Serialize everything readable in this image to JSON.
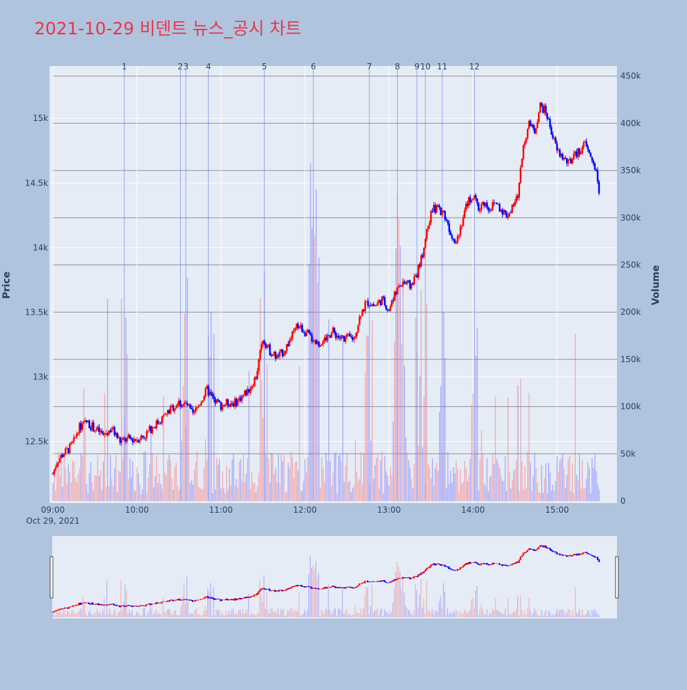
{
  "chart_data": {
    "type": "candlestick",
    "title": "2021-10-29 비덴트 뉴스_공시 차트",
    "xlabel": "",
    "ylabel": "Price",
    "y2label": "Volume",
    "date_label": "Oct 29, 2021",
    "x_ticks": [
      "09:00",
      "10:00",
      "11:00",
      "12:00",
      "13:00",
      "14:00",
      "15:00"
    ],
    "price_ticks": [
      {
        "value": 12500,
        "label": "12.5k"
      },
      {
        "value": 13000,
        "label": "13k"
      },
      {
        "value": 13500,
        "label": "13.5k"
      },
      {
        "value": 14000,
        "label": "14k"
      },
      {
        "value": 14500,
        "label": "14.5k"
      },
      {
        "value": 15000,
        "label": "15k"
      }
    ],
    "volume_ticks": [
      {
        "value": 0,
        "label": "0"
      },
      {
        "value": 50000,
        "label": "50k"
      },
      {
        "value": 100000,
        "label": "100k"
      },
      {
        "value": 150000,
        "label": "150k"
      },
      {
        "value": 200000,
        "label": "200k"
      },
      {
        "value": 250000,
        "label": "250k"
      },
      {
        "value": 300000,
        "label": "300k"
      },
      {
        "value": 350000,
        "label": "350k"
      },
      {
        "value": 400000,
        "label": "400k"
      },
      {
        "value": 450000,
        "label": "450k"
      }
    ],
    "x_range_minutes": [
      0,
      391
    ],
    "price_range": [
      12040,
      15400
    ],
    "volume_range": [
      0,
      460000
    ],
    "rising_color": "#ff0000",
    "falling_color": "#0000ff",
    "price_path": [
      [
        0,
        12250
      ],
      [
        3,
        12350
      ],
      [
        7,
        12400
      ],
      [
        12,
        12450
      ],
      [
        15,
        12500
      ],
      [
        18,
        12600
      ],
      [
        24,
        12650
      ],
      [
        30,
        12600
      ],
      [
        36,
        12550
      ],
      [
        42,
        12600
      ],
      [
        48,
        12500
      ],
      [
        54,
        12520
      ],
      [
        60,
        12520
      ],
      [
        66,
        12550
      ],
      [
        70,
        12600
      ],
      [
        75,
        12650
      ],
      [
        80,
        12700
      ],
      [
        84,
        12750
      ],
      [
        90,
        12800
      ],
      [
        96,
        12780
      ],
      [
        100,
        12700
      ],
      [
        105,
        12800
      ],
      [
        110,
        12900
      ],
      [
        115,
        12820
      ],
      [
        120,
        12780
      ],
      [
        125,
        12800
      ],
      [
        130,
        12800
      ],
      [
        135,
        12850
      ],
      [
        140,
        12900
      ],
      [
        145,
        13000
      ],
      [
        150,
        13300
      ],
      [
        155,
        13200
      ],
      [
        160,
        13150
      ],
      [
        165,
        13200
      ],
      [
        170,
        13300
      ],
      [
        175,
        13400
      ],
      [
        180,
        13350
      ],
      [
        185,
        13300
      ],
      [
        190,
        13250
      ],
      [
        195,
        13300
      ],
      [
        200,
        13350
      ],
      [
        205,
        13300
      ],
      [
        210,
        13300
      ],
      [
        215,
        13300
      ],
      [
        220,
        13500
      ],
      [
        225,
        13580
      ],
      [
        230,
        13550
      ],
      [
        235,
        13600
      ],
      [
        240,
        13520
      ],
      [
        245,
        13650
      ],
      [
        250,
        13750
      ],
      [
        255,
        13700
      ],
      [
        260,
        13800
      ],
      [
        265,
        14000
      ],
      [
        268,
        14200
      ],
      [
        272,
        14300
      ],
      [
        276,
        14300
      ],
      [
        280,
        14250
      ],
      [
        284,
        14120
      ],
      [
        288,
        14050
      ],
      [
        292,
        14200
      ],
      [
        296,
        14350
      ],
      [
        300,
        14400
      ],
      [
        304,
        14300
      ],
      [
        308,
        14350
      ],
      [
        312,
        14300
      ],
      [
        316,
        14350
      ],
      [
        320,
        14300
      ],
      [
        324,
        14250
      ],
      [
        328,
        14300
      ],
      [
        332,
        14400
      ],
      [
        336,
        14800
      ],
      [
        340,
        14950
      ],
      [
        344,
        14900
      ],
      [
        348,
        15100
      ],
      [
        352,
        15050
      ],
      [
        356,
        14900
      ],
      [
        360,
        14750
      ],
      [
        364,
        14700
      ],
      [
        368,
        14650
      ],
      [
        372,
        14700
      ],
      [
        376,
        14750
      ],
      [
        380,
        14800
      ],
      [
        384,
        14700
      ],
      [
        388,
        14600
      ],
      [
        391,
        14300
      ]
    ],
    "annotations": [
      {
        "label": "1",
        "minute": 51
      },
      {
        "label": "2",
        "minute": 91
      },
      {
        "label": "3",
        "minute": 95
      },
      {
        "label": "4",
        "minute": 111
      },
      {
        "label": "5",
        "minute": 151
      },
      {
        "label": "6",
        "minute": 186
      },
      {
        "label": "7",
        "minute": 226
      },
      {
        "label": "8",
        "minute": 246
      },
      {
        "label": "9",
        "minute": 260
      },
      {
        "label": "10",
        "minute": 266
      },
      {
        "label": "11",
        "minute": 278
      },
      {
        "label": "12",
        "minute": 301
      }
    ]
  }
}
